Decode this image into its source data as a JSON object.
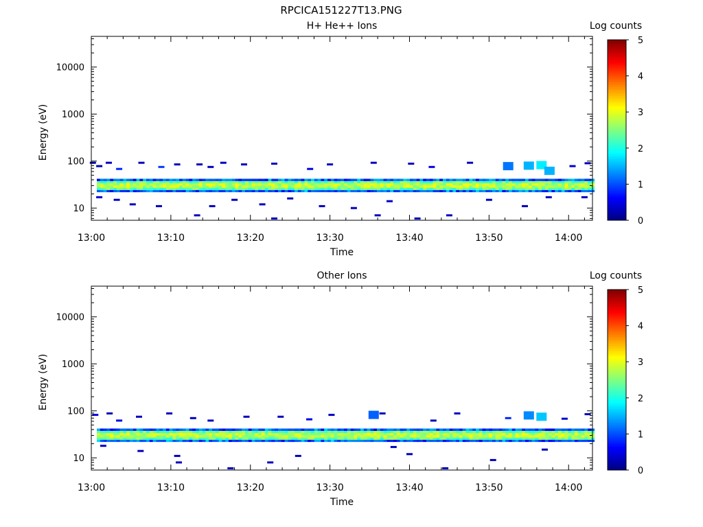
{
  "title": "RPCICA151227T13.PNG",
  "colors": {
    "colormap": [
      "#000080",
      "#0000ff",
      "#0080ff",
      "#00ffff",
      "#80ff80",
      "#ffff00",
      "#ff8000",
      "#ff0000",
      "#800000"
    ],
    "axes": "#000000",
    "background": "#ffffff"
  },
  "chart_data": [
    {
      "type": "heatmap",
      "title": "H+ He++ Ions",
      "xlabel": "Time",
      "ylabel": "Energy (eV)",
      "xticks": [
        "13:00",
        "13:10",
        "13:20",
        "13:30",
        "13:40",
        "13:50",
        "14:00"
      ],
      "xlim_minutes": [
        0,
        63
      ],
      "yticks": [
        "10",
        "100",
        "1000",
        "10000"
      ],
      "yscale": "log",
      "ylim": [
        5.5,
        45000
      ],
      "colorbar": {
        "label": "Log counts",
        "ticks": [
          "0",
          "1",
          "2",
          "3",
          "4",
          "5"
        ],
        "range": [
          0,
          5
        ]
      },
      "core_band": {
        "energy_low": 22,
        "energy_high": 42,
        "log_counts_center": 3.0,
        "log_counts_edge": 1.8
      },
      "sporadic": [
        {
          "t": 0.2,
          "e": 92,
          "v": 0.3
        },
        {
          "t": 1.0,
          "e": 78,
          "v": 0.3
        },
        {
          "t": 2.2,
          "e": 92,
          "v": 0.3
        },
        {
          "t": 3.5,
          "e": 68,
          "v": 0.8
        },
        {
          "t": 6.3,
          "e": 92,
          "v": 0.3
        },
        {
          "t": 8.8,
          "e": 75,
          "v": 0.9
        },
        {
          "t": 10.8,
          "e": 85,
          "v": 0.3
        },
        {
          "t": 13.6,
          "e": 85,
          "v": 0.3
        },
        {
          "t": 15.0,
          "e": 75,
          "v": 0.3
        },
        {
          "t": 16.6,
          "e": 92,
          "v": 0.3
        },
        {
          "t": 19.2,
          "e": 85,
          "v": 0.3
        },
        {
          "t": 23.0,
          "e": 88,
          "v": 0.3
        },
        {
          "t": 27.5,
          "e": 68,
          "v": 0.5
        },
        {
          "t": 30.0,
          "e": 85,
          "v": 0.3
        },
        {
          "t": 35.5,
          "e": 92,
          "v": 0.3
        },
        {
          "t": 40.2,
          "e": 88,
          "v": 0.3
        },
        {
          "t": 42.8,
          "e": 75,
          "v": 0.5
        },
        {
          "t": 47.6,
          "e": 92,
          "v": 0.3
        },
        {
          "t": 52.4,
          "e": 78,
          "v": 1.2
        },
        {
          "t": 55.0,
          "e": 80,
          "v": 1.5
        },
        {
          "t": 56.6,
          "e": 82,
          "v": 1.8
        },
        {
          "t": 57.6,
          "e": 62,
          "v": 1.5
        },
        {
          "t": 60.5,
          "e": 78,
          "v": 0.4
        },
        {
          "t": 62.4,
          "e": 90,
          "v": 0.3
        },
        {
          "t": 1.0,
          "e": 17,
          "v": 0.4
        },
        {
          "t": 3.2,
          "e": 15,
          "v": 0.3
        },
        {
          "t": 5.2,
          "e": 12,
          "v": 0.3
        },
        {
          "t": 8.5,
          "e": 11,
          "v": 0.3
        },
        {
          "t": 13.3,
          "e": 7,
          "v": 0.3
        },
        {
          "t": 15.2,
          "e": 11,
          "v": 0.3
        },
        {
          "t": 18.0,
          "e": 15,
          "v": 0.3
        },
        {
          "t": 21.5,
          "e": 12,
          "v": 0.3
        },
        {
          "t": 23.0,
          "e": 6,
          "v": 0.3
        },
        {
          "t": 25.0,
          "e": 16,
          "v": 0.3
        },
        {
          "t": 29.0,
          "e": 11,
          "v": 0.3
        },
        {
          "t": 33.0,
          "e": 10,
          "v": 0.3
        },
        {
          "t": 37.5,
          "e": 14,
          "v": 0.4
        },
        {
          "t": 36.0,
          "e": 7,
          "v": 0.3
        },
        {
          "t": 41.0,
          "e": 6,
          "v": 0.3
        },
        {
          "t": 45.0,
          "e": 7,
          "v": 0.3
        },
        {
          "t": 50.0,
          "e": 15,
          "v": 0.3
        },
        {
          "t": 54.5,
          "e": 11,
          "v": 0.3
        },
        {
          "t": 57.5,
          "e": 17,
          "v": 0.3
        },
        {
          "t": 62.0,
          "e": 17,
          "v": 0.3
        }
      ]
    },
    {
      "type": "heatmap",
      "title": "Other Ions",
      "xlabel": "Time",
      "ylabel": "Energy (eV)",
      "xticks": [
        "13:00",
        "13:10",
        "13:20",
        "13:30",
        "13:40",
        "13:50",
        "14:00"
      ],
      "xlim_minutes": [
        0,
        63
      ],
      "yticks": [
        "10",
        "100",
        "1000",
        "10000"
      ],
      "yscale": "log",
      "ylim": [
        5.5,
        45000
      ],
      "colorbar": {
        "label": "Log counts",
        "ticks": [
          "0",
          "1",
          "2",
          "3",
          "4",
          "5"
        ],
        "range": [
          0,
          5
        ]
      },
      "core_band": {
        "energy_low": 22,
        "energy_high": 42,
        "log_counts_center": 3.0,
        "log_counts_edge": 1.8
      },
      "sporadic": [
        {
          "t": 0.5,
          "e": 82,
          "v": 0.5
        },
        {
          "t": 2.3,
          "e": 88,
          "v": 0.3
        },
        {
          "t": 3.5,
          "e": 62,
          "v": 0.5
        },
        {
          "t": 6.0,
          "e": 75,
          "v": 0.3
        },
        {
          "t": 9.8,
          "e": 88,
          "v": 0.3
        },
        {
          "t": 12.8,
          "e": 70,
          "v": 0.3
        },
        {
          "t": 15.0,
          "e": 62,
          "v": 0.3
        },
        {
          "t": 19.5,
          "e": 75,
          "v": 0.3
        },
        {
          "t": 23.8,
          "e": 75,
          "v": 0.3
        },
        {
          "t": 27.4,
          "e": 66,
          "v": 0.5
        },
        {
          "t": 30.2,
          "e": 82,
          "v": 0.3
        },
        {
          "t": 35.5,
          "e": 82,
          "v": 1.1
        },
        {
          "t": 36.6,
          "e": 88,
          "v": 0.3
        },
        {
          "t": 43.0,
          "e": 62,
          "v": 0.3
        },
        {
          "t": 46.0,
          "e": 88,
          "v": 0.3
        },
        {
          "t": 52.4,
          "e": 70,
          "v": 0.8
        },
        {
          "t": 55.0,
          "e": 80,
          "v": 1.3
        },
        {
          "t": 56.6,
          "e": 75,
          "v": 1.6
        },
        {
          "t": 59.5,
          "e": 68,
          "v": 0.4
        },
        {
          "t": 62.4,
          "e": 85,
          "v": 0.3
        },
        {
          "t": 1.5,
          "e": 18,
          "v": 0.4
        },
        {
          "t": 6.2,
          "e": 14,
          "v": 0.3
        },
        {
          "t": 10.8,
          "e": 11,
          "v": 0.3
        },
        {
          "t": 11.0,
          "e": 8,
          "v": 0.3
        },
        {
          "t": 17.5,
          "e": 6,
          "v": 0.3
        },
        {
          "t": 22.5,
          "e": 8,
          "v": 0.3
        },
        {
          "t": 26.0,
          "e": 11,
          "v": 0.3
        },
        {
          "t": 38.0,
          "e": 17,
          "v": 0.3
        },
        {
          "t": 40.0,
          "e": 12,
          "v": 0.3
        },
        {
          "t": 44.5,
          "e": 6,
          "v": 0.3
        },
        {
          "t": 50.5,
          "e": 9,
          "v": 0.3
        },
        {
          "t": 57.0,
          "e": 15,
          "v": 0.3
        }
      ]
    }
  ]
}
